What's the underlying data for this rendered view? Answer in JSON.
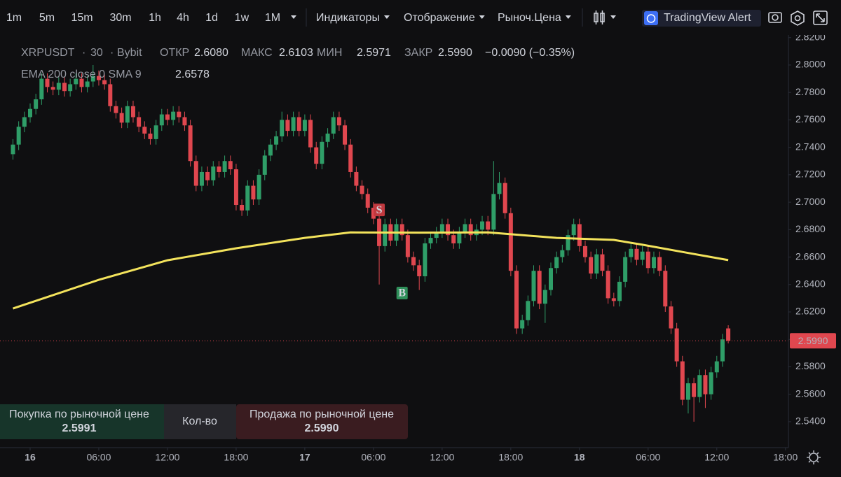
{
  "toolbar": {
    "intervals": [
      "1m",
      "5m",
      "15m",
      "30m",
      "1h",
      "4h",
      "1d",
      "1w",
      "1M"
    ],
    "menus": [
      "Индикаторы",
      "Отображение",
      "Рыноч.Цена"
    ],
    "alert": "TradingView Alert"
  },
  "chart_data": {
    "type": "candlestick",
    "symbol": "XRPUSDT",
    "interval": "30",
    "exchange": "Bybit",
    "ohlc_legend": [
      {
        "label": "ОТКР",
        "value": "2.6080"
      },
      {
        "label": "МАКС",
        "value": "2.6103"
      },
      {
        "label": "МИН",
        "value": "2.5971"
      },
      {
        "label": "ЗАКР",
        "value": "2.5990"
      }
    ],
    "change": "−0.0090 (−0.35%)",
    "up_color": "#2f9e68",
    "down_color": "#e0474f",
    "x": [
      -1.5,
      -1,
      -0.5,
      0,
      0.5,
      1,
      1.5,
      2,
      2.5,
      3,
      3.5,
      4,
      4.5,
      5,
      5.5,
      6,
      6.5,
      7,
      7.5,
      8,
      8.5,
      9,
      9.5,
      10,
      10.5,
      11,
      11.5,
      12,
      12.5,
      13,
      13.5,
      14,
      14.5,
      15,
      15.5,
      16,
      16.5,
      17,
      17.5,
      18,
      18.5,
      19,
      19.5,
      20,
      20.5,
      21,
      21.5,
      22,
      22.5,
      23,
      23.5,
      24,
      24.5,
      25,
      25.5,
      26,
      26.5,
      27,
      27.5,
      28,
      28.5,
      29,
      29.5,
      30,
      30.5,
      31,
      31.5,
      32,
      32.5,
      33,
      33.5,
      34,
      34.5,
      35,
      35.5,
      36,
      36.5,
      37,
      37.5,
      38,
      38.5,
      39,
      39.5,
      40,
      40.5,
      41,
      41.5,
      42,
      42.5,
      43,
      43.5,
      44,
      44.5,
      45,
      45.5,
      46,
      46.5,
      47,
      47.5,
      48,
      48.5,
      49,
      49.5,
      50,
      50.5,
      51,
      51.5,
      52,
      52.5,
      53,
      53.5,
      54,
      54.5,
      55,
      55.5,
      56,
      56.5,
      57,
      57.5,
      58,
      58.5,
      59,
      59.5,
      60,
      60.5,
      61
    ],
    "open": [
      2.735,
      2.742,
      2.755,
      2.762,
      2.768,
      2.775,
      2.79,
      2.784,
      2.782,
      2.787,
      2.781,
      2.786,
      2.79,
      2.784,
      2.788,
      2.792,
      2.789,
      2.786,
      2.77,
      2.765,
      2.758,
      2.77,
      2.762,
      2.755,
      2.75,
      2.746,
      2.756,
      2.764,
      2.76,
      2.766,
      2.762,
      2.756,
      2.73,
      2.712,
      2.722,
      2.716,
      2.726,
      2.722,
      2.73,
      2.724,
      2.698,
      2.694,
      2.712,
      2.702,
      2.72,
      2.734,
      2.742,
      2.748,
      2.76,
      2.752,
      2.762,
      2.752,
      2.76,
      2.74,
      2.728,
      2.744,
      2.75,
      2.762,
      2.756,
      2.742,
      2.722,
      2.712,
      2.706,
      2.696,
      2.688,
      2.668,
      2.684,
      2.672,
      2.684,
      2.676,
      2.66,
      2.654,
      2.646,
      2.67,
      2.674,
      2.678,
      2.684,
      2.676,
      2.67,
      2.678,
      2.684,
      2.676,
      2.68,
      2.686,
      2.68,
      2.706,
      2.714,
      2.692,
      2.65,
      2.608,
      2.614,
      2.628,
      2.65,
      2.626,
      2.636,
      2.652,
      2.66,
      2.665,
      2.676,
      2.684,
      2.668,
      2.66,
      2.648,
      2.662,
      2.65,
      2.63,
      2.628,
      2.642,
      2.66,
      2.666,
      2.658,
      2.664,
      2.652,
      2.66,
      2.65,
      2.624,
      2.608,
      2.584,
      2.556,
      2.568,
      2.558,
      2.574,
      2.56,
      2.576,
      2.584,
      2.608
    ],
    "high": [
      2.746,
      2.759,
      2.766,
      2.772,
      2.779,
      2.794,
      2.794,
      2.788,
      2.791,
      2.791,
      2.79,
      2.794,
      2.794,
      2.792,
      2.8,
      2.796,
      2.793,
      2.79,
      2.774,
      2.769,
      2.774,
      2.774,
      2.766,
      2.759,
      2.754,
      2.76,
      2.768,
      2.768,
      2.77,
      2.77,
      2.766,
      2.76,
      2.734,
      2.726,
      2.726,
      2.73,
      2.73,
      2.734,
      2.734,
      2.728,
      2.702,
      2.716,
      2.716,
      2.724,
      2.738,
      2.746,
      2.752,
      2.766,
      2.764,
      2.766,
      2.766,
      2.764,
      2.764,
      2.744,
      2.748,
      2.754,
      2.766,
      2.766,
      2.76,
      2.746,
      2.726,
      2.716,
      2.71,
      2.7,
      2.692,
      2.688,
      2.688,
      2.688,
      2.688,
      2.68,
      2.664,
      2.658,
      2.674,
      2.678,
      2.682,
      2.688,
      2.688,
      2.68,
      2.682,
      2.688,
      2.688,
      2.684,
      2.69,
      2.69,
      2.73,
      2.722,
      2.718,
      2.696,
      2.654,
      2.618,
      2.632,
      2.654,
      2.654,
      2.64,
      2.656,
      2.664,
      2.669,
      2.68,
      2.688,
      2.688,
      2.672,
      2.664,
      2.666,
      2.666,
      2.654,
      2.634,
      2.646,
      2.664,
      2.67,
      2.67,
      2.668,
      2.668,
      2.664,
      2.664,
      2.654,
      2.628,
      2.612,
      2.588,
      2.572,
      2.572,
      2.578,
      2.578,
      2.58,
      2.588,
      2.604,
      2.6103
    ],
    "low": [
      2.731,
      2.738,
      2.751,
      2.758,
      2.764,
      2.771,
      2.78,
      2.778,
      2.778,
      2.777,
      2.777,
      2.782,
      2.78,
      2.78,
      2.784,
      2.785,
      2.782,
      2.766,
      2.761,
      2.754,
      2.754,
      2.758,
      2.751,
      2.746,
      2.742,
      2.742,
      2.752,
      2.756,
      2.756,
      2.758,
      2.752,
      2.726,
      2.708,
      2.708,
      2.712,
      2.712,
      2.718,
      2.718,
      2.72,
      2.694,
      2.69,
      2.69,
      2.698,
      2.698,
      2.716,
      2.73,
      2.738,
      2.744,
      2.748,
      2.748,
      2.748,
      2.748,
      2.736,
      2.724,
      2.724,
      2.74,
      2.746,
      2.752,
      2.738,
      2.718,
      2.708,
      2.702,
      2.692,
      2.684,
      2.64,
      2.664,
      2.668,
      2.668,
      2.672,
      2.656,
      2.65,
      2.636,
      2.642,
      2.666,
      2.67,
      2.674,
      2.672,
      2.666,
      2.666,
      2.674,
      2.672,
      2.672,
      2.676,
      2.676,
      2.676,
      2.702,
      2.688,
      2.646,
      2.604,
      2.604,
      2.61,
      2.624,
      2.622,
      2.612,
      2.632,
      2.648,
      2.656,
      2.661,
      2.672,
      2.664,
      2.656,
      2.644,
      2.644,
      2.646,
      2.626,
      2.624,
      2.624,
      2.638,
      2.656,
      2.654,
      2.654,
      2.648,
      2.648,
      2.646,
      2.62,
      2.604,
      2.58,
      2.552,
      2.546,
      2.54,
      2.554,
      2.55,
      2.556,
      2.572,
      2.58,
      2.5971
    ],
    "close": [
      2.742,
      2.755,
      2.762,
      2.768,
      2.775,
      2.79,
      2.784,
      2.782,
      2.787,
      2.781,
      2.786,
      2.79,
      2.784,
      2.788,
      2.792,
      2.789,
      2.786,
      2.77,
      2.765,
      2.758,
      2.77,
      2.762,
      2.755,
      2.75,
      2.746,
      2.756,
      2.764,
      2.76,
      2.766,
      2.762,
      2.756,
      2.73,
      2.712,
      2.722,
      2.716,
      2.726,
      2.722,
      2.73,
      2.724,
      2.698,
      2.694,
      2.712,
      2.702,
      2.72,
      2.734,
      2.742,
      2.748,
      2.76,
      2.752,
      2.762,
      2.752,
      2.76,
      2.74,
      2.728,
      2.744,
      2.75,
      2.762,
      2.756,
      2.742,
      2.722,
      2.712,
      2.706,
      2.696,
      2.688,
      2.668,
      2.684,
      2.672,
      2.684,
      2.676,
      2.66,
      2.654,
      2.646,
      2.67,
      2.674,
      2.678,
      2.684,
      2.676,
      2.67,
      2.678,
      2.684,
      2.676,
      2.68,
      2.686,
      2.68,
      2.706,
      2.714,
      2.692,
      2.65,
      2.608,
      2.614,
      2.628,
      2.65,
      2.626,
      2.636,
      2.652,
      2.66,
      2.665,
      2.676,
      2.684,
      2.668,
      2.66,
      2.648,
      2.662,
      2.65,
      2.63,
      2.628,
      2.642,
      2.66,
      2.666,
      2.658,
      2.664,
      2.652,
      2.66,
      2.65,
      2.624,
      2.608,
      2.584,
      2.556,
      2.568,
      2.558,
      2.574,
      2.56,
      2.576,
      2.584,
      2.6,
      2.599
    ],
    "ema": {
      "name": "EMA 200 close 0 SMA 9",
      "color": "#f3e35c",
      "x": [
        -1.5,
        6,
        12,
        18,
        24,
        28,
        34,
        40,
        46,
        51,
        53.5,
        57.5,
        61
      ],
      "values": [
        2.6225,
        2.6434,
        2.6577,
        2.6664,
        2.674,
        2.678,
        2.6778,
        2.678,
        2.674,
        2.6725,
        2.669,
        2.663,
        2.6578
      ]
    },
    "signals": [
      {
        "label": "S",
        "x": 30.5,
        "y": 2.6944,
        "color": "#c0393f"
      },
      {
        "label": "B",
        "x": 32.5,
        "y": 2.6338,
        "color": "#2f8f5a"
      }
    ],
    "last_price": {
      "value": 2.599,
      "label": "2.5990"
    },
    "xlim": [
      -2.633,
      66.26
    ],
    "ylim": [
      2.5211,
      2.8219
    ],
    "xticks": [
      {
        "value": 0,
        "label": "16"
      },
      {
        "value": 6,
        "label": "06:00"
      },
      {
        "value": 12,
        "label": "12:00"
      },
      {
        "value": 18,
        "label": "18:00"
      },
      {
        "value": 24,
        "label": "17"
      },
      {
        "value": 30,
        "label": "06:00"
      },
      {
        "value": 36,
        "label": "12:00"
      },
      {
        "value": 42,
        "label": "18:00"
      },
      {
        "value": 48,
        "label": "18"
      },
      {
        "value": 54,
        "label": "06:00"
      },
      {
        "value": 60,
        "label": "12:00"
      },
      {
        "value": 66,
        "label": "18:00"
      }
    ],
    "yticks": [
      {
        "value": 2.54,
        "label": "2.5400"
      },
      {
        "value": 2.56,
        "label": "2.5600"
      },
      {
        "value": 2.58,
        "label": "2.5800"
      },
      {
        "value": 2.6,
        "label": "2.6000"
      },
      {
        "value": 2.62,
        "label": "2.6200"
      },
      {
        "value": 2.64,
        "label": "2.6400"
      },
      {
        "value": 2.66,
        "label": "2.6600"
      },
      {
        "value": 2.68,
        "label": "2.6800"
      },
      {
        "value": 2.7,
        "label": "2.7000"
      },
      {
        "value": 2.72,
        "label": "2.7200"
      },
      {
        "value": 2.74,
        "label": "2.7400"
      },
      {
        "value": 2.76,
        "label": "2.7600"
      },
      {
        "value": 2.78,
        "label": "2.7800"
      },
      {
        "value": 2.8,
        "label": "2.8000"
      },
      {
        "value": 2.82,
        "label": "2.8200"
      }
    ],
    "grid": false
  },
  "order_panel": {
    "buy_label": "Покупка по рыночной цене",
    "buy_price": "2.5991",
    "qty": "Кол-во",
    "sell_label": "Продажа по рыночной цене",
    "sell_price": "2.5990"
  }
}
